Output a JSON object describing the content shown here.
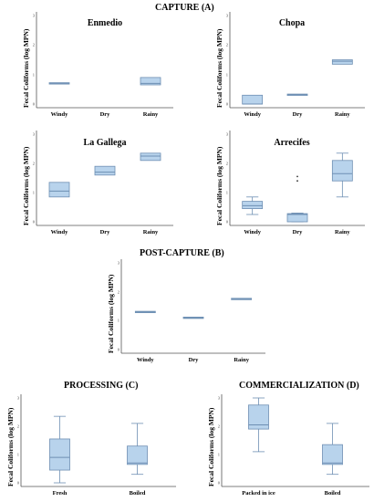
{
  "colors": {
    "box_fill": "#b8d3ec",
    "box_stroke": "#6e8fb3",
    "axis": "#555555"
  },
  "sections": {
    "A": "CAPTURE (A)",
    "B": "POST-CAPTURE     (B)",
    "C": "PROCESSING    (C)",
    "D": "COMMERCIALIZATION    (D)"
  },
  "chart_data": [
    {
      "type": "box",
      "title": "Enmedio",
      "ylabel": "Fecal Coliforms (log MPN)",
      "categories": [
        "Windy",
        "Dry",
        "Rainy"
      ],
      "ylim": [
        0,
        3
      ],
      "yticks": [
        0,
        1,
        2,
        3
      ],
      "boxes": [
        {
          "category": "Windy",
          "q1": 0.7,
          "median": 0.7,
          "q3": 0.7
        },
        null,
        {
          "category": "Rainy",
          "q1": 0.65,
          "median": 0.7,
          "q3": 0.9
        }
      ]
    },
    {
      "type": "box",
      "title": "Chopa",
      "ylabel": "Fecal Coliforms (log MPN)",
      "categories": [
        "Windy",
        "Dry",
        "Rainy"
      ],
      "ylim": [
        0,
        3
      ],
      "yticks": [
        0,
        1,
        2,
        3
      ],
      "boxes": [
        {
          "category": "Windy",
          "q1": 0.0,
          "median": 0.0,
          "q3": 0.3
        },
        {
          "category": "Dry",
          "q1": 0.3,
          "median": 0.32,
          "q3": 0.33
        },
        {
          "category": "Rainy",
          "q1": 1.35,
          "median": 1.45,
          "q3": 1.5
        }
      ]
    },
    {
      "type": "box",
      "title": "La Gallega",
      "ylabel": "Fecal Coliforms (log MPN)",
      "categories": [
        "Windy",
        "Dry",
        "Rainy"
      ],
      "ylim": [
        0,
        3
      ],
      "yticks": [
        0,
        1,
        2,
        3
      ],
      "boxes": [
        {
          "category": "Windy",
          "q1": 0.85,
          "median": 1.05,
          "q3": 1.35
        },
        {
          "category": "Dry",
          "q1": 1.6,
          "median": 1.7,
          "q3": 1.9
        },
        {
          "category": "Rainy",
          "q1": 2.1,
          "median": 2.25,
          "q3": 2.35
        }
      ]
    },
    {
      "type": "box",
      "title": "Arrecifes",
      "ylabel": "Fecal Coliforms (log MPN)",
      "categories": [
        "Windy",
        "Dry",
        "Rainy"
      ],
      "ylim": [
        0,
        3
      ],
      "yticks": [
        0,
        1,
        2,
        3
      ],
      "boxes": [
        {
          "category": "Windy",
          "min": 0.25,
          "q1": 0.45,
          "median": 0.55,
          "q3": 0.7,
          "max": 0.85
        },
        {
          "category": "Dry",
          "min": 0.0,
          "q1": 0.0,
          "median": 0.25,
          "q3": 0.28,
          "max": 0.3,
          "outliers": [
            1.4,
            1.55
          ]
        },
        {
          "category": "Rainy",
          "min": 0.85,
          "q1": 1.4,
          "median": 1.65,
          "q3": 2.1,
          "max": 2.35
        }
      ]
    },
    {
      "type": "box",
      "title": "",
      "ylabel": "Fecal Coliforms (log MPN)",
      "categories": [
        "Windy",
        "Dry",
        "Rainy"
      ],
      "ylim": [
        0,
        3
      ],
      "yticks": [
        0,
        1,
        2,
        3
      ],
      "boxes": [
        {
          "category": "Windy",
          "q1": 1.3,
          "median": 1.3,
          "q3": 1.3
        },
        {
          "category": "Dry",
          "q1": 1.1,
          "median": 1.1,
          "q3": 1.1
        },
        {
          "category": "Rainy",
          "q1": 1.75,
          "median": 1.75,
          "q3": 1.75
        }
      ]
    },
    {
      "type": "box",
      "title": "",
      "ylabel": "Fecal Coliforms (log MPN)",
      "categories": [
        "Fresh",
        "Boiled"
      ],
      "ylim": [
        0,
        3
      ],
      "yticks": [
        0,
        1,
        2,
        3
      ],
      "boxes": [
        {
          "category": "Fresh",
          "min": 0.0,
          "q1": 0.45,
          "median": 0.9,
          "q3": 1.55,
          "max": 2.35
        },
        {
          "category": "Boiled",
          "min": 0.3,
          "q1": 0.65,
          "median": 0.7,
          "q3": 1.3,
          "max": 2.1
        }
      ]
    },
    {
      "type": "box",
      "title": "",
      "ylabel": "Fecal Coliforms (log MPN)",
      "categories": [
        "Packed in ice",
        "Boiled"
      ],
      "ylim": [
        0,
        3
      ],
      "yticks": [
        0,
        1,
        2,
        3
      ],
      "boxes": [
        {
          "category": "Packed in ice",
          "min": 1.1,
          "q1": 1.9,
          "median": 2.05,
          "q3": 2.75,
          "max": 3.0
        },
        {
          "category": "Boiled",
          "min": 0.3,
          "q1": 0.65,
          "median": 0.7,
          "q3": 1.35,
          "max": 2.1
        }
      ]
    }
  ]
}
